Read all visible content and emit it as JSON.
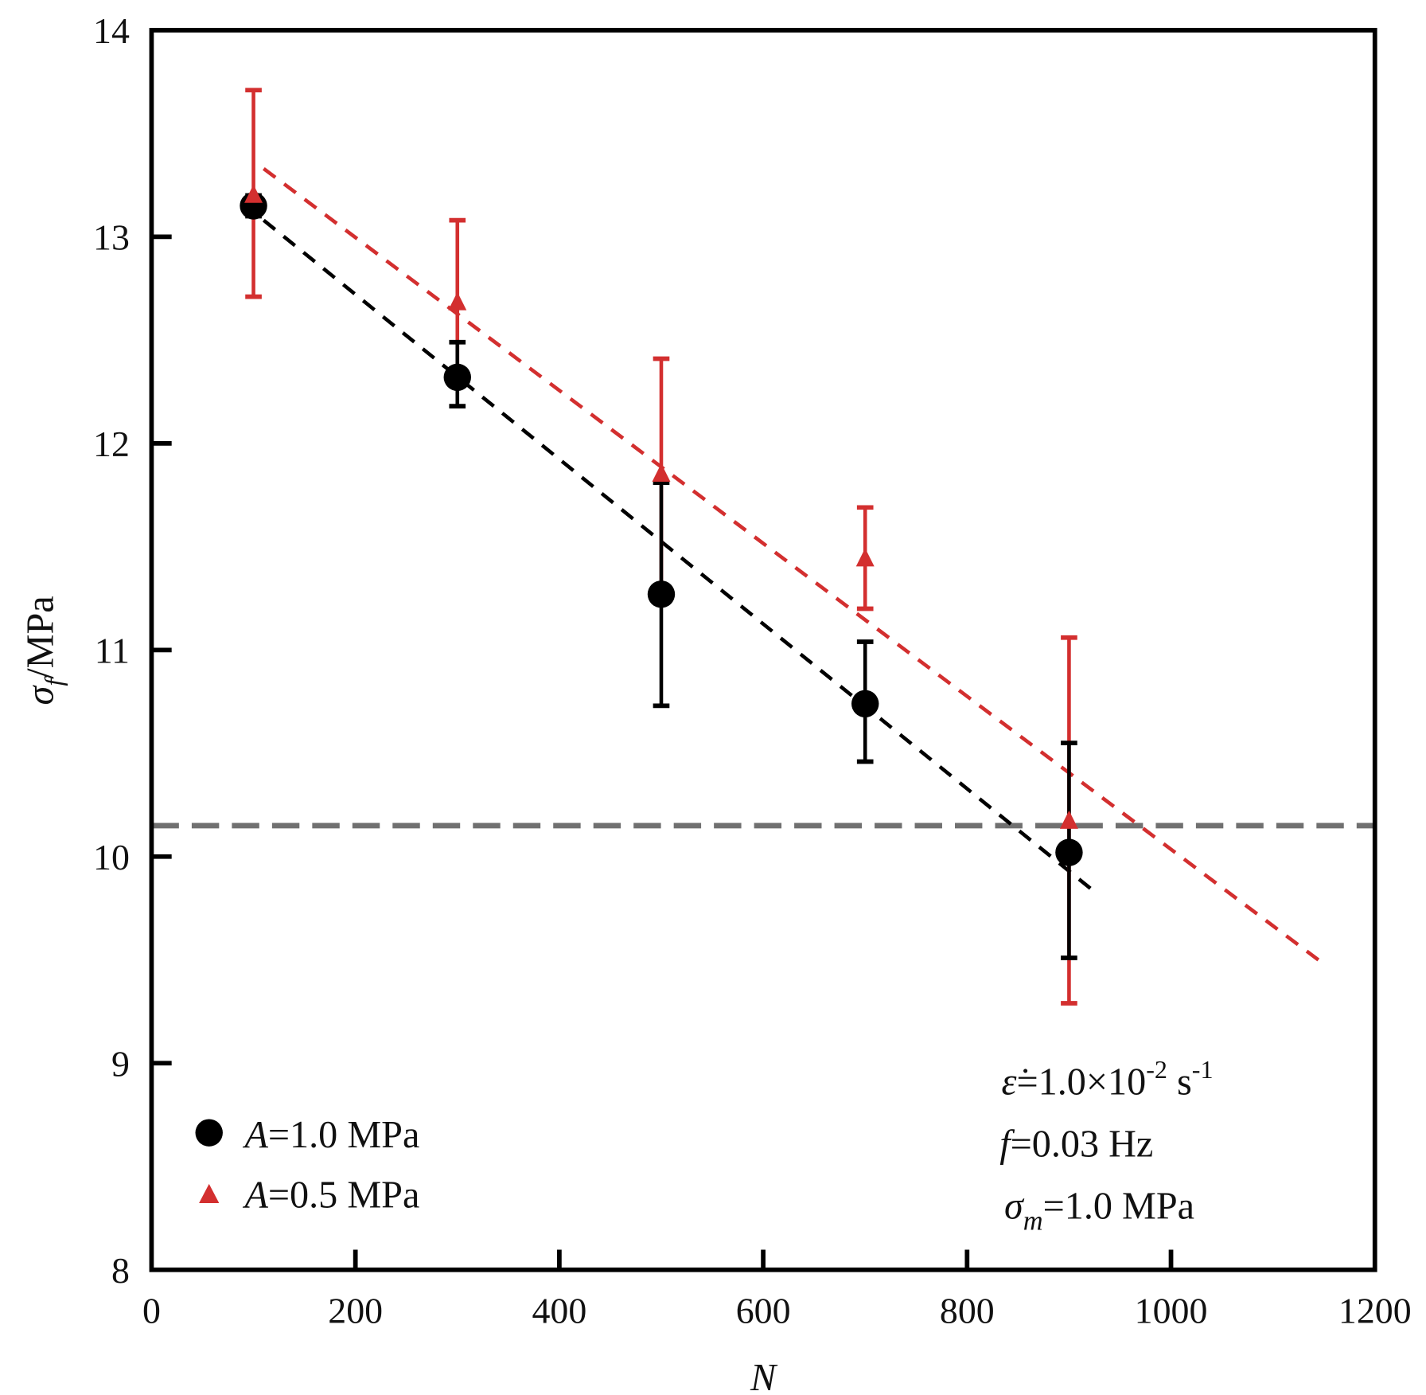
{
  "chart_data": {
    "type": "scatter",
    "xlabel": "N",
    "ylabel": {
      "sym": "σ",
      "sub": "f",
      "unit": "/MPa"
    },
    "xlim": [
      0,
      1200
    ],
    "ylim": [
      8,
      14
    ],
    "xticks": [
      0,
      200,
      400,
      600,
      800,
      1000,
      1200
    ],
    "yticks": [
      8,
      9,
      10,
      11,
      12,
      13,
      14
    ],
    "grid": false,
    "legend_placement": "bottom-left",
    "series": [
      {
        "name": "A=1.0 MPa",
        "name_italic": "A",
        "name_rest": "=1.0 MPa",
        "marker": "circle",
        "color": "#000000",
        "points": [
          {
            "x": 100,
            "y": 13.15,
            "lo": 13.1,
            "hi": 13.2
          },
          {
            "x": 300,
            "y": 12.32,
            "lo": 12.18,
            "hi": 12.49
          },
          {
            "x": 500,
            "y": 11.27,
            "lo": 10.73,
            "hi": 11.81
          },
          {
            "x": 700,
            "y": 10.74,
            "lo": 10.46,
            "hi": 11.04
          },
          {
            "x": 900,
            "y": 10.02,
            "lo": 9.51,
            "hi": 10.55
          }
        ],
        "fit": {
          "x": [
            110,
            925
          ],
          "y": [
            13.08,
            9.83
          ]
        }
      },
      {
        "name": "A=0.5 MPa",
        "name_italic": "A",
        "name_rest": "=0.5 MPa",
        "marker": "triangle",
        "color": "#d32f2f",
        "points": [
          {
            "x": 100,
            "y": 13.2,
            "lo": 12.71,
            "hi": 13.71
          },
          {
            "x": 300,
            "y": 12.68,
            "lo": 12.3,
            "hi": 13.08
          },
          {
            "x": 500,
            "y": 11.85,
            "lo": 11.29,
            "hi": 12.41
          },
          {
            "x": 700,
            "y": 11.44,
            "lo": 11.2,
            "hi": 11.69
          },
          {
            "x": 900,
            "y": 10.17,
            "lo": 9.29,
            "hi": 11.06
          }
        ],
        "fit": {
          "x": [
            110,
            1150
          ],
          "y": [
            13.33,
            9.48
          ]
        }
      }
    ],
    "reference_line": {
      "y": 10.15,
      "color": "#707070"
    },
    "annotations": {
      "strain_rate": {
        "sym": "ε̇",
        "text": "=1.0×10",
        "exp": "-2",
        "unit": " s",
        "unit_exp": "-1"
      },
      "frequency": {
        "sym": "f",
        "text": "=0.03 Hz"
      },
      "mean_stress": {
        "sym": "σ",
        "sub": "m",
        "text": "=1.0 MPa"
      }
    }
  }
}
